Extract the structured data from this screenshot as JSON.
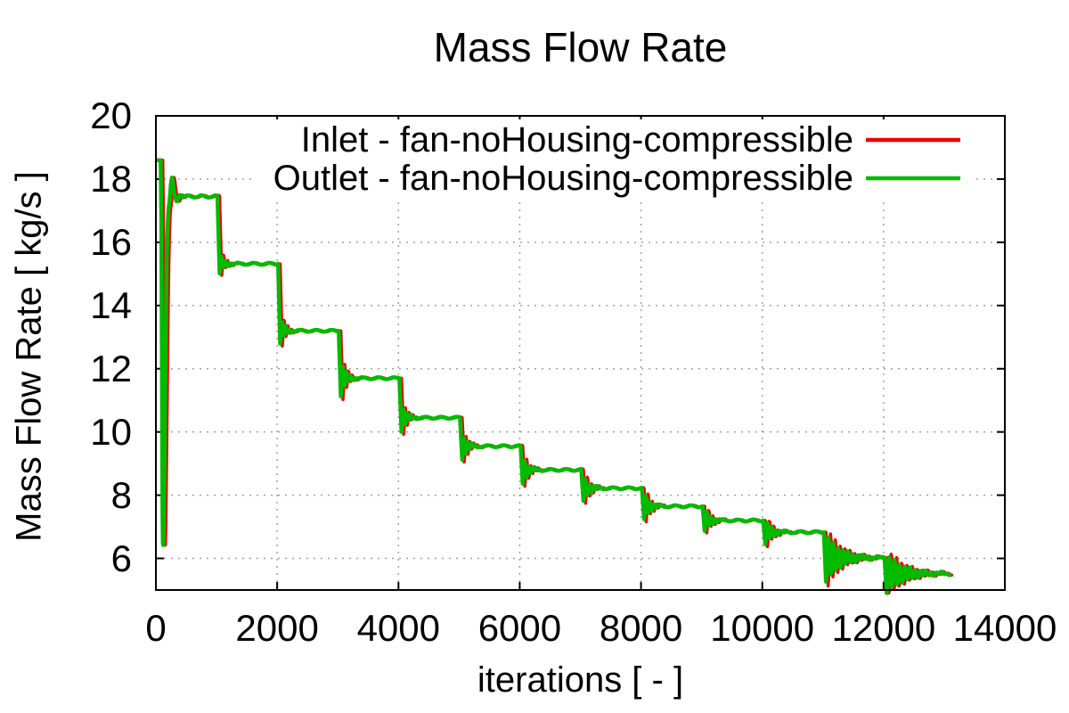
{
  "title": "Mass Flow Rate",
  "colors": {
    "background": "#ffffff",
    "axis": "#000000",
    "grid": "#a0a0a0",
    "text": "#000000"
  },
  "chart_data": {
    "type": "line",
    "title": "Mass Flow Rate",
    "xlabel": "iterations [ - ]",
    "ylabel": "Mass Flow Rate [ kg/s ]",
    "xlim": [
      0,
      14000
    ],
    "ylim": [
      5,
      20
    ],
    "xticks": [
      0,
      2000,
      4000,
      6000,
      8000,
      10000,
      12000,
      14000
    ],
    "yticks": [
      6,
      8,
      10,
      12,
      14,
      16,
      18,
      20
    ],
    "grid": {
      "visible": true,
      "style": "dotted",
      "color": "#a0a0a0"
    },
    "legend": {
      "position": "top-center-inside",
      "opaque": true
    },
    "series": [
      {
        "name": "Inlet - fan-noHousing-compressible",
        "color": "#ee0000"
      },
      {
        "name": "Outlet - fan-noHousing-compressible",
        "color": "#00bb00"
      }
    ],
    "data_end_iteration": 13090,
    "first_plateau_value": 17.45,
    "initial_transient_points": [
      [
        0,
        18.6
      ],
      [
        78,
        18.6
      ],
      [
        90,
        16.8
      ],
      [
        100,
        12.0
      ],
      [
        108,
        7.6
      ],
      [
        114,
        6.5
      ],
      [
        122,
        6.42
      ],
      [
        130,
        7.0
      ],
      [
        142,
        9.0
      ],
      [
        154,
        11.4
      ],
      [
        166,
        13.6
      ],
      [
        178,
        15.3
      ],
      [
        190,
        16.3
      ],
      [
        202,
        16.9
      ],
      [
        212,
        17.1
      ],
      [
        222,
        17.25
      ],
      [
        234,
        17.5
      ],
      [
        246,
        17.8
      ],
      [
        258,
        18.0
      ],
      [
        268,
        18.05
      ],
      [
        278,
        17.95
      ],
      [
        290,
        17.75
      ],
      [
        304,
        17.55
      ],
      [
        320,
        17.4
      ],
      [
        338,
        17.3
      ],
      [
        356,
        17.3
      ],
      [
        376,
        17.4
      ],
      [
        396,
        17.5
      ],
      [
        420,
        17.48
      ],
      [
        450,
        17.42
      ]
    ],
    "steps": [
      {
        "at": 1000,
        "value": 15.32,
        "undershoot": 15.0,
        "period": 65,
        "decay": 75
      },
      {
        "at": 2000,
        "value": 13.2,
        "undershoot": 12.8,
        "period": 62,
        "decay": 75
      },
      {
        "at": 3000,
        "value": 11.7,
        "undershoot": 11.15,
        "period": 62,
        "decay": 80
      },
      {
        "at": 4000,
        "value": 10.45,
        "undershoot": 10.03,
        "period": 62,
        "decay": 80
      },
      {
        "at": 5000,
        "value": 9.55,
        "undershoot": 9.14,
        "period": 62,
        "decay": 85
      },
      {
        "at": 6000,
        "value": 8.8,
        "undershoot": 8.36,
        "period": 64,
        "decay": 85
      },
      {
        "at": 7000,
        "value": 8.22,
        "undershoot": 7.8,
        "period": 66,
        "decay": 95
      },
      {
        "at": 8000,
        "value": 7.65,
        "undershoot": 7.21,
        "period": 66,
        "decay": 95
      },
      {
        "at": 9000,
        "value": 7.2,
        "undershoot": 6.85,
        "period": 68,
        "decay": 100
      },
      {
        "at": 10000,
        "value": 6.83,
        "undershoot": 6.44,
        "period": 70,
        "decay": 115
      },
      {
        "at": 11000,
        "value": 6.02,
        "undershoot": 5.28,
        "period": 80,
        "decay": 250
      },
      {
        "at": 12000,
        "value": 5.52,
        "undershoot": 4.9,
        "period": 86,
        "decay": 300,
        "end": 13090
      }
    ]
  }
}
